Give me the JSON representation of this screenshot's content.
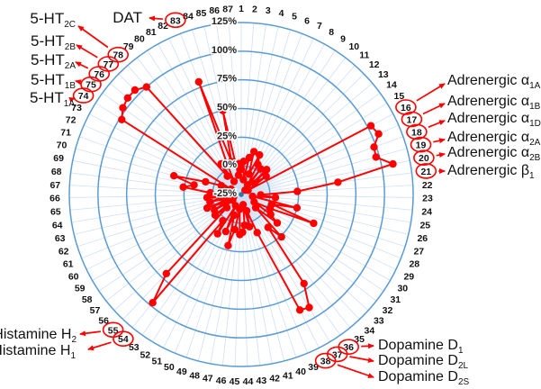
{
  "chart_data": {
    "type": "radar",
    "description": "Polar receptor-binding profile: percent inhibition across 87 numbered targets",
    "categories": [
      1,
      2,
      3,
      4,
      5,
      6,
      7,
      8,
      9,
      10,
      11,
      12,
      13,
      14,
      15,
      16,
      17,
      18,
      19,
      20,
      21,
      22,
      23,
      24,
      25,
      26,
      27,
      28,
      29,
      30,
      31,
      32,
      33,
      34,
      35,
      36,
      37,
      38,
      39,
      40,
      41,
      42,
      43,
      44,
      45,
      46,
      47,
      48,
      49,
      50,
      51,
      52,
      53,
      54,
      55,
      56,
      57,
      58,
      59,
      60,
      61,
      62,
      63,
      64,
      65,
      66,
      67,
      68,
      69,
      70,
      71,
      72,
      73,
      74,
      75,
      76,
      77,
      78,
      79,
      80,
      81,
      82,
      83,
      84,
      85,
      86,
      87
    ],
    "values": [
      -3,
      4,
      -12,
      8,
      14,
      -6,
      13,
      5,
      -15,
      3,
      -20,
      6,
      -10,
      2,
      -18,
      103,
      106,
      98,
      97,
      110,
      60,
      24,
      -8,
      5,
      -15,
      25,
      3,
      43,
      3,
      -12,
      6,
      15,
      -8,
      26,
      12,
      70,
      90,
      88,
      11,
      -10,
      4,
      -16,
      2,
      8,
      10,
      -12,
      6,
      21,
      -6,
      10,
      -14,
      15,
      3,
      97,
      70,
      -8,
      4,
      -16,
      2,
      -10,
      7,
      -18,
      3,
      -8,
      5,
      -14,
      2,
      26,
      17,
      36,
      8,
      -6,
      -15,
      98,
      103,
      105,
      105,
      100,
      -5,
      7,
      -12,
      4,
      80,
      5,
      50,
      -8,
      2
    ],
    "radial_axis": {
      "min": -25,
      "max": 125,
      "step": 25,
      "tick_labels": [
        "125%",
        "100%",
        "75%",
        "50%",
        "25%",
        "0%",
        "-25%"
      ]
    },
    "circled_spokes": [
      16,
      17,
      18,
      19,
      20,
      21,
      36,
      37,
      38,
      54,
      55,
      74,
      75,
      76,
      77,
      78,
      83
    ],
    "series_color": "#FF0000",
    "grid_color": "#5B9BD5",
    "spoke_color": "#CFE0F4",
    "center_dot_color": "#3A6EA8",
    "legend": "none",
    "annotations": [
      {
        "spoke": 83,
        "main": "DAT",
        "sub": ""
      },
      {
        "spoke": 78,
        "main": "5-HT",
        "sub": "2C"
      },
      {
        "spoke": 77,
        "main": "5-HT",
        "sub": "2B"
      },
      {
        "spoke": 76,
        "main": "5-HT",
        "sub": "2A"
      },
      {
        "spoke": 75,
        "main": "5-HT",
        "sub": "1B"
      },
      {
        "spoke": 74,
        "main": "5-HT",
        "sub": "1A"
      },
      {
        "spoke": 16,
        "main": "Adrenergic α",
        "sub": "1A"
      },
      {
        "spoke": 17,
        "main": "Adrenergic α",
        "sub": "1B"
      },
      {
        "spoke": 18,
        "main": "Adrenergic α",
        "sub": "1D"
      },
      {
        "spoke": 19,
        "main": "Adrenergic α",
        "sub": "2A"
      },
      {
        "spoke": 20,
        "main": "Adrenergic α",
        "sub": "2B"
      },
      {
        "spoke": 21,
        "main": "Adrenergic β",
        "sub": "1"
      },
      {
        "spoke": 55,
        "main": "Histamine H",
        "sub": "2"
      },
      {
        "spoke": 54,
        "main": "Histamine H",
        "sub": "1"
      },
      {
        "spoke": 36,
        "main": "Dopamine D",
        "sub": "1"
      },
      {
        "spoke": 37,
        "main": "Dopamine D",
        "sub": "2L"
      },
      {
        "spoke": 38,
        "main": "Dopamine D",
        "sub": "2S"
      }
    ]
  }
}
